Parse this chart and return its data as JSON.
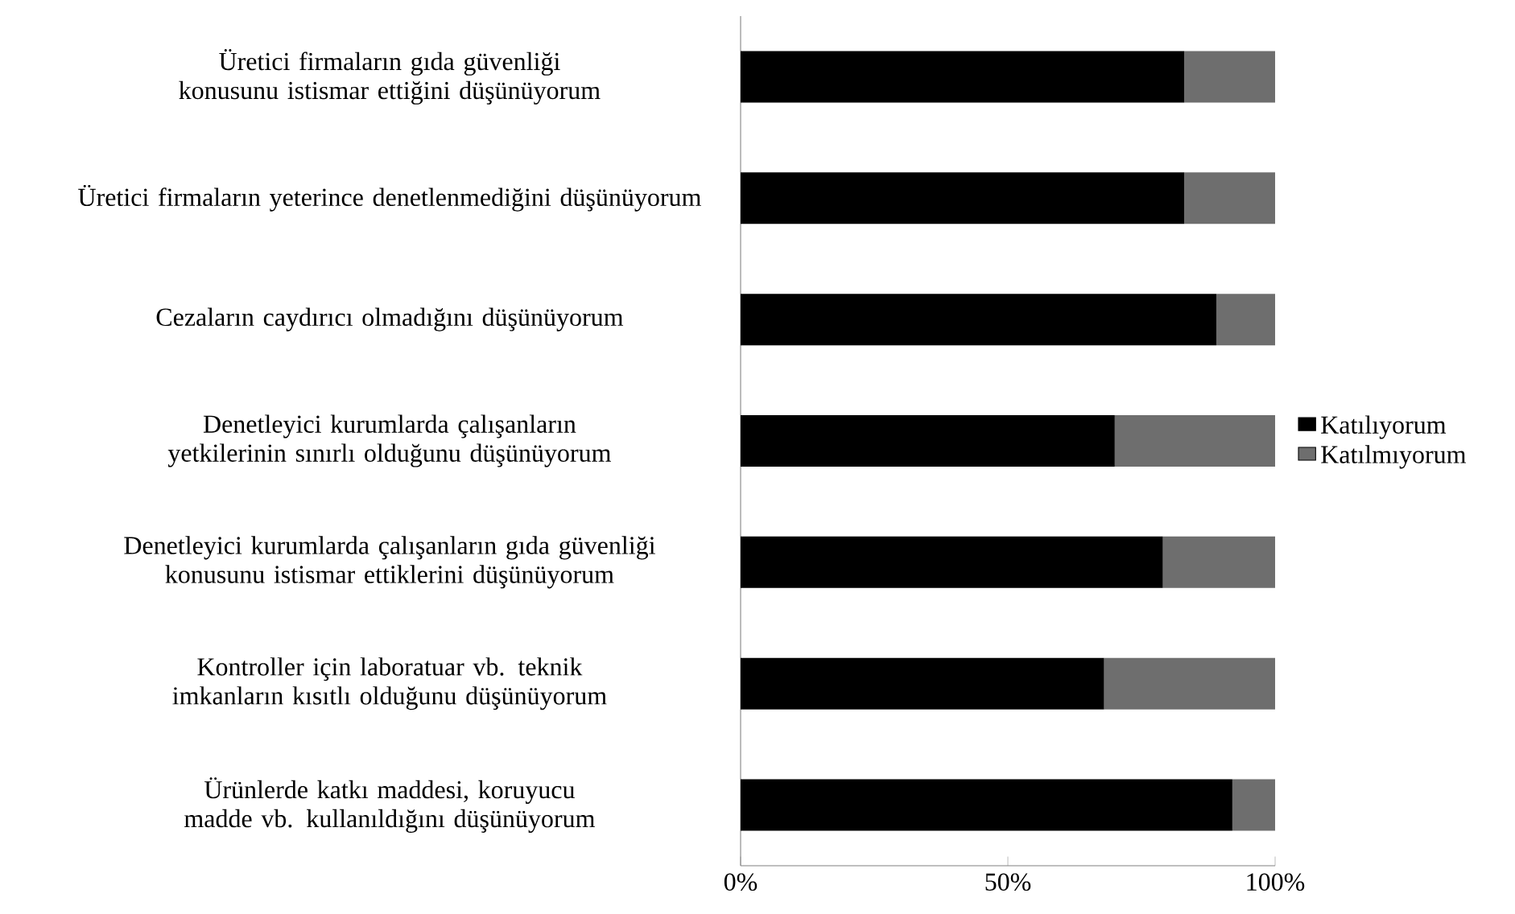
{
  "chart_data": {
    "type": "bar",
    "orientation": "horizontal",
    "stacked": true,
    "categories": [
      "Üretici firmaların gıda güvenliği konusunu istismar ettiğini düşünüyorum",
      "Üretici firmaların yeterince denetlenmediğini düşünüyorum",
      "Cezaların caydırıcı olmadığını düşünüyorum",
      "Denetleyici kurumlarda çalışanların yetkilerinin sınırlı olduğunu düşünüyorum",
      "Denetleyici kurumlarda çalışanların gıda güvenliği konusunu istismar ettiklerini düşünüyorum",
      "Kontroller için laboratuar vb. teknik imkanların kısıtlı olduğunu düşünüyorum",
      "Ürünlerde katkı maddesi, koruyucu madde vb. kullanıldığını düşünüyorum"
    ],
    "series": [
      {
        "name": "Katılıyorum",
        "color": "#000000",
        "values": [
          83,
          83,
          89,
          70,
          79,
          68,
          92
        ]
      },
      {
        "name": "Katılmıyorum",
        "color": "#6e6e6e",
        "values": [
          17,
          17,
          11,
          30,
          21,
          32,
          8
        ]
      }
    ],
    "xlim": [
      0,
      100
    ],
    "xticks": [
      {
        "value": 0,
        "label": "0%"
      },
      {
        "value": 50,
        "label": "50%"
      },
      {
        "value": 100,
        "label": "100%"
      }
    ],
    "legend": "right"
  }
}
